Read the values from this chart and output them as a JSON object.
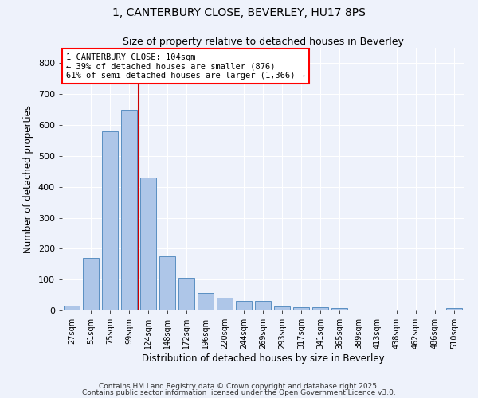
{
  "title_line1": "1, CANTERBURY CLOSE, BEVERLEY, HU17 8PS",
  "title_line2": "Size of property relative to detached houses in Beverley",
  "xlabel": "Distribution of detached houses by size in Beverley",
  "ylabel": "Number of detached properties",
  "bar_labels": [
    "27sqm",
    "51sqm",
    "75sqm",
    "99sqm",
    "124sqm",
    "148sqm",
    "172sqm",
    "196sqm",
    "220sqm",
    "244sqm",
    "269sqm",
    "293sqm",
    "317sqm",
    "341sqm",
    "365sqm",
    "389sqm",
    "413sqm",
    "438sqm",
    "462sqm",
    "486sqm",
    "510sqm"
  ],
  "bar_values": [
    15,
    170,
    580,
    650,
    430,
    175,
    105,
    57,
    40,
    30,
    30,
    13,
    10,
    10,
    8,
    0,
    0,
    0,
    0,
    0,
    7
  ],
  "bar_color": "#aec6e8",
  "bar_edgecolor": "#5a8fc2",
  "background_color": "#eef2fb",
  "grid_color": "#ffffff",
  "annotation_text": "1 CANTERBURY CLOSE: 104sqm\n← 39% of detached houses are smaller (876)\n61% of semi-detached houses are larger (1,366) →",
  "redline_x": 3.5,
  "ylim": [
    0,
    850
  ],
  "yticks": [
    0,
    100,
    200,
    300,
    400,
    500,
    600,
    700,
    800
  ],
  "footnote1": "Contains HM Land Registry data © Crown copyright and database right 2025.",
  "footnote2": "Contains public sector information licensed under the Open Government Licence v3.0."
}
